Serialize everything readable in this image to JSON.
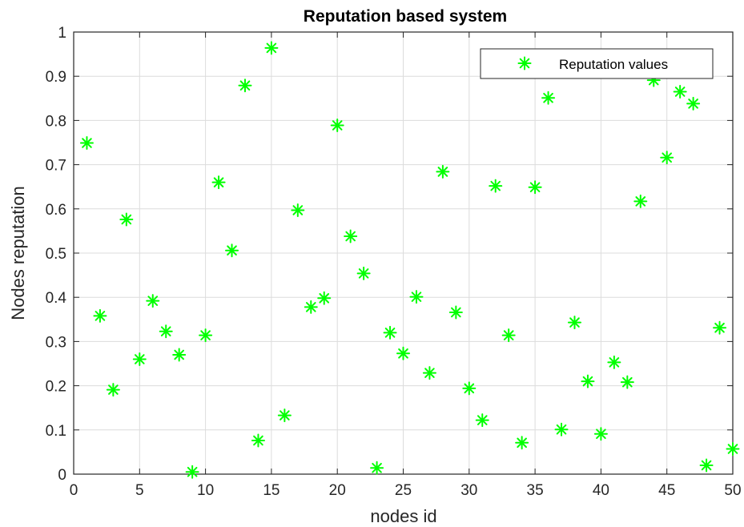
{
  "chart_data": {
    "type": "scatter",
    "title": "Reputation based system",
    "xlabel": "nodes id",
    "ylabel": "Nodes reputation",
    "xlim": [
      0,
      50
    ],
    "ylim": [
      0,
      1
    ],
    "xticks": [
      0,
      5,
      10,
      15,
      20,
      25,
      30,
      35,
      40,
      45,
      50
    ],
    "xtick_labels": [
      "0",
      "5",
      "10",
      "15",
      "20",
      "25",
      "30",
      "35",
      "40",
      "45",
      "50"
    ],
    "yticks": [
      0,
      0.1,
      0.2,
      0.3,
      0.4,
      0.5,
      0.6,
      0.7,
      0.8,
      0.9,
      1
    ],
    "ytick_labels": [
      "0",
      "0.1",
      "0.2",
      "0.3",
      "0.4",
      "0.5",
      "0.6",
      "0.7",
      "0.8",
      "0.9",
      "1"
    ],
    "grid": true,
    "legend_position": "top-right",
    "marker": "asterisk",
    "series": [
      {
        "name": "Reputation values",
        "color": "#00ff00",
        "x": [
          1,
          2,
          3,
          4,
          5,
          6,
          7,
          8,
          9,
          10,
          11,
          12,
          13,
          14,
          15,
          16,
          17,
          18,
          19,
          20,
          21,
          22,
          23,
          24,
          25,
          26,
          27,
          28,
          29,
          30,
          31,
          32,
          33,
          34,
          35,
          36,
          37,
          38,
          39,
          40,
          41,
          42,
          43,
          44,
          45,
          46,
          47,
          48,
          49,
          50
        ],
        "y": [
          0.749,
          0.358,
          0.191,
          0.576,
          0.26,
          0.392,
          0.323,
          0.27,
          0.005,
          0.314,
          0.66,
          0.506,
          0.879,
          0.076,
          0.964,
          0.133,
          0.597,
          0.378,
          0.398,
          0.789,
          0.538,
          0.454,
          0.014,
          0.32,
          0.273,
          0.401,
          0.229,
          0.684,
          0.366,
          0.194,
          0.122,
          0.652,
          0.314,
          0.071,
          0.649,
          0.851,
          0.101,
          0.343,
          0.21,
          0.091,
          0.253,
          0.208,
          0.617,
          0.891,
          0.716,
          0.865,
          0.838,
          0.02,
          0.331,
          0.057
        ]
      }
    ]
  }
}
